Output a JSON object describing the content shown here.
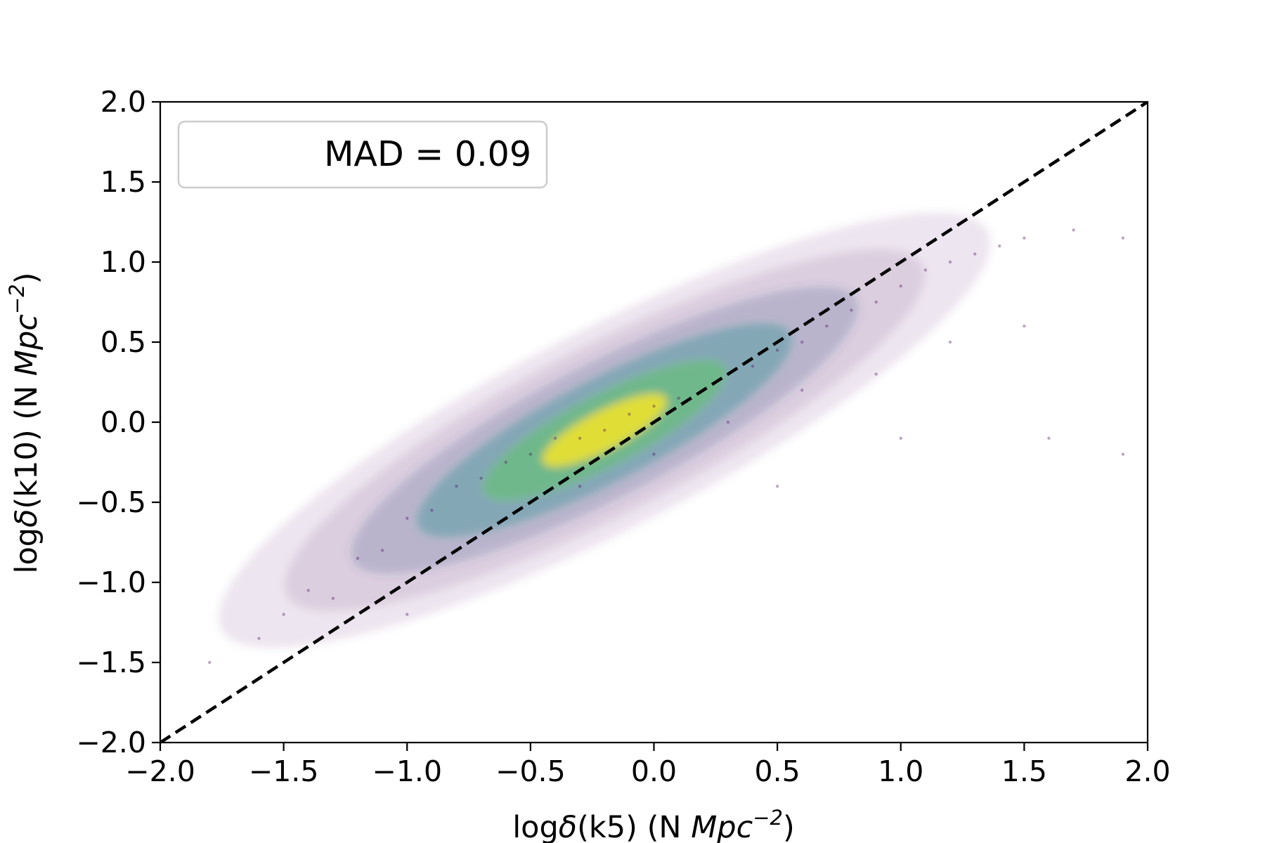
{
  "chart_data": {
    "type": "scatter",
    "title": "",
    "xlabel": {
      "prefix": "log",
      "symbol": "δ",
      "mid": "(k5) (N ",
      "unit": "Mpc",
      "exponent": "−2",
      "suffix": ")"
    },
    "ylabel": {
      "prefix": "log",
      "symbol": "δ",
      "mid": "(k10) (N ",
      "unit": "Mpc",
      "exponent": "−2",
      "suffix": ")"
    },
    "xlim": [
      -2.0,
      2.0
    ],
    "ylim": [
      -2.0,
      2.0
    ],
    "x_ticks": [
      -2.0,
      -1.5,
      -1.0,
      -0.5,
      0.0,
      0.5,
      1.0,
      1.5,
      2.0
    ],
    "y_ticks": [
      -2.0,
      -1.5,
      -1.0,
      -0.5,
      0.0,
      0.5,
      1.0,
      1.5,
      2.0
    ],
    "x_tick_labels": [
      "−2.0",
      "−1.5",
      "−1.0",
      "−0.5",
      "0.0",
      "0.5",
      "1.0",
      "1.5",
      "2.0"
    ],
    "y_tick_labels": [
      "−2.0",
      "−1.5",
      "−1.0",
      "−0.5",
      "0.0",
      "0.5",
      "1.0",
      "1.5",
      "2.0"
    ],
    "grid": false,
    "legend": {
      "text": "MAD = 0.09",
      "location": "upper-left"
    },
    "reference_line": {
      "type": "one-to-one",
      "style": "dashed",
      "color": "#000000",
      "from": [
        -2.0,
        -2.0
      ],
      "to": [
        2.0,
        2.0
      ]
    },
    "density_colormap": "viridis",
    "colors": {
      "low_density": "#440154",
      "mid_low": "#3b528b",
      "mid": "#21918c",
      "mid_high": "#5ec962",
      "high_density": "#fde725"
    },
    "density_core": {
      "x": -0.2,
      "y": -0.05
    },
    "series": [
      {
        "points": [
          [
            -1.8,
            -1.5
          ],
          [
            -1.6,
            -1.35
          ],
          [
            -1.5,
            -1.2
          ],
          [
            -1.4,
            -1.05
          ],
          [
            -1.3,
            -1.1
          ],
          [
            -1.2,
            -0.85
          ],
          [
            -1.1,
            -0.8
          ],
          [
            -1.0,
            -0.6
          ],
          [
            -0.9,
            -0.55
          ],
          [
            -0.8,
            -0.4
          ],
          [
            -0.7,
            -0.35
          ],
          [
            -0.6,
            -0.25
          ],
          [
            -0.5,
            -0.2
          ],
          [
            -0.4,
            -0.1
          ],
          [
            -0.3,
            -0.1
          ],
          [
            -0.2,
            -0.05
          ],
          [
            -0.1,
            0.05
          ],
          [
            0.0,
            0.1
          ],
          [
            0.1,
            0.15
          ],
          [
            0.2,
            0.2
          ],
          [
            0.3,
            0.3
          ],
          [
            0.4,
            0.35
          ],
          [
            0.5,
            0.45
          ],
          [
            0.6,
            0.5
          ],
          [
            0.7,
            0.6
          ],
          [
            0.8,
            0.7
          ],
          [
            0.9,
            0.75
          ],
          [
            1.0,
            0.85
          ],
          [
            1.1,
            0.95
          ],
          [
            1.2,
            1.0
          ],
          [
            1.3,
            1.05
          ],
          [
            1.4,
            1.1
          ],
          [
            1.5,
            1.15
          ],
          [
            1.7,
            1.2
          ],
          [
            1.9,
            1.15
          ],
          [
            -0.6,
            -0.6
          ],
          [
            -0.3,
            -0.4
          ],
          [
            0.0,
            -0.2
          ],
          [
            0.3,
            0.0
          ],
          [
            0.6,
            0.2
          ],
          [
            0.9,
            0.3
          ],
          [
            1.2,
            0.5
          ],
          [
            1.5,
            0.6
          ],
          [
            -1.0,
            -1.2
          ],
          [
            0.5,
            -0.4
          ],
          [
            1.0,
            -0.1
          ],
          [
            1.6,
            -0.1
          ],
          [
            1.9,
            -0.2
          ]
        ]
      }
    ]
  }
}
